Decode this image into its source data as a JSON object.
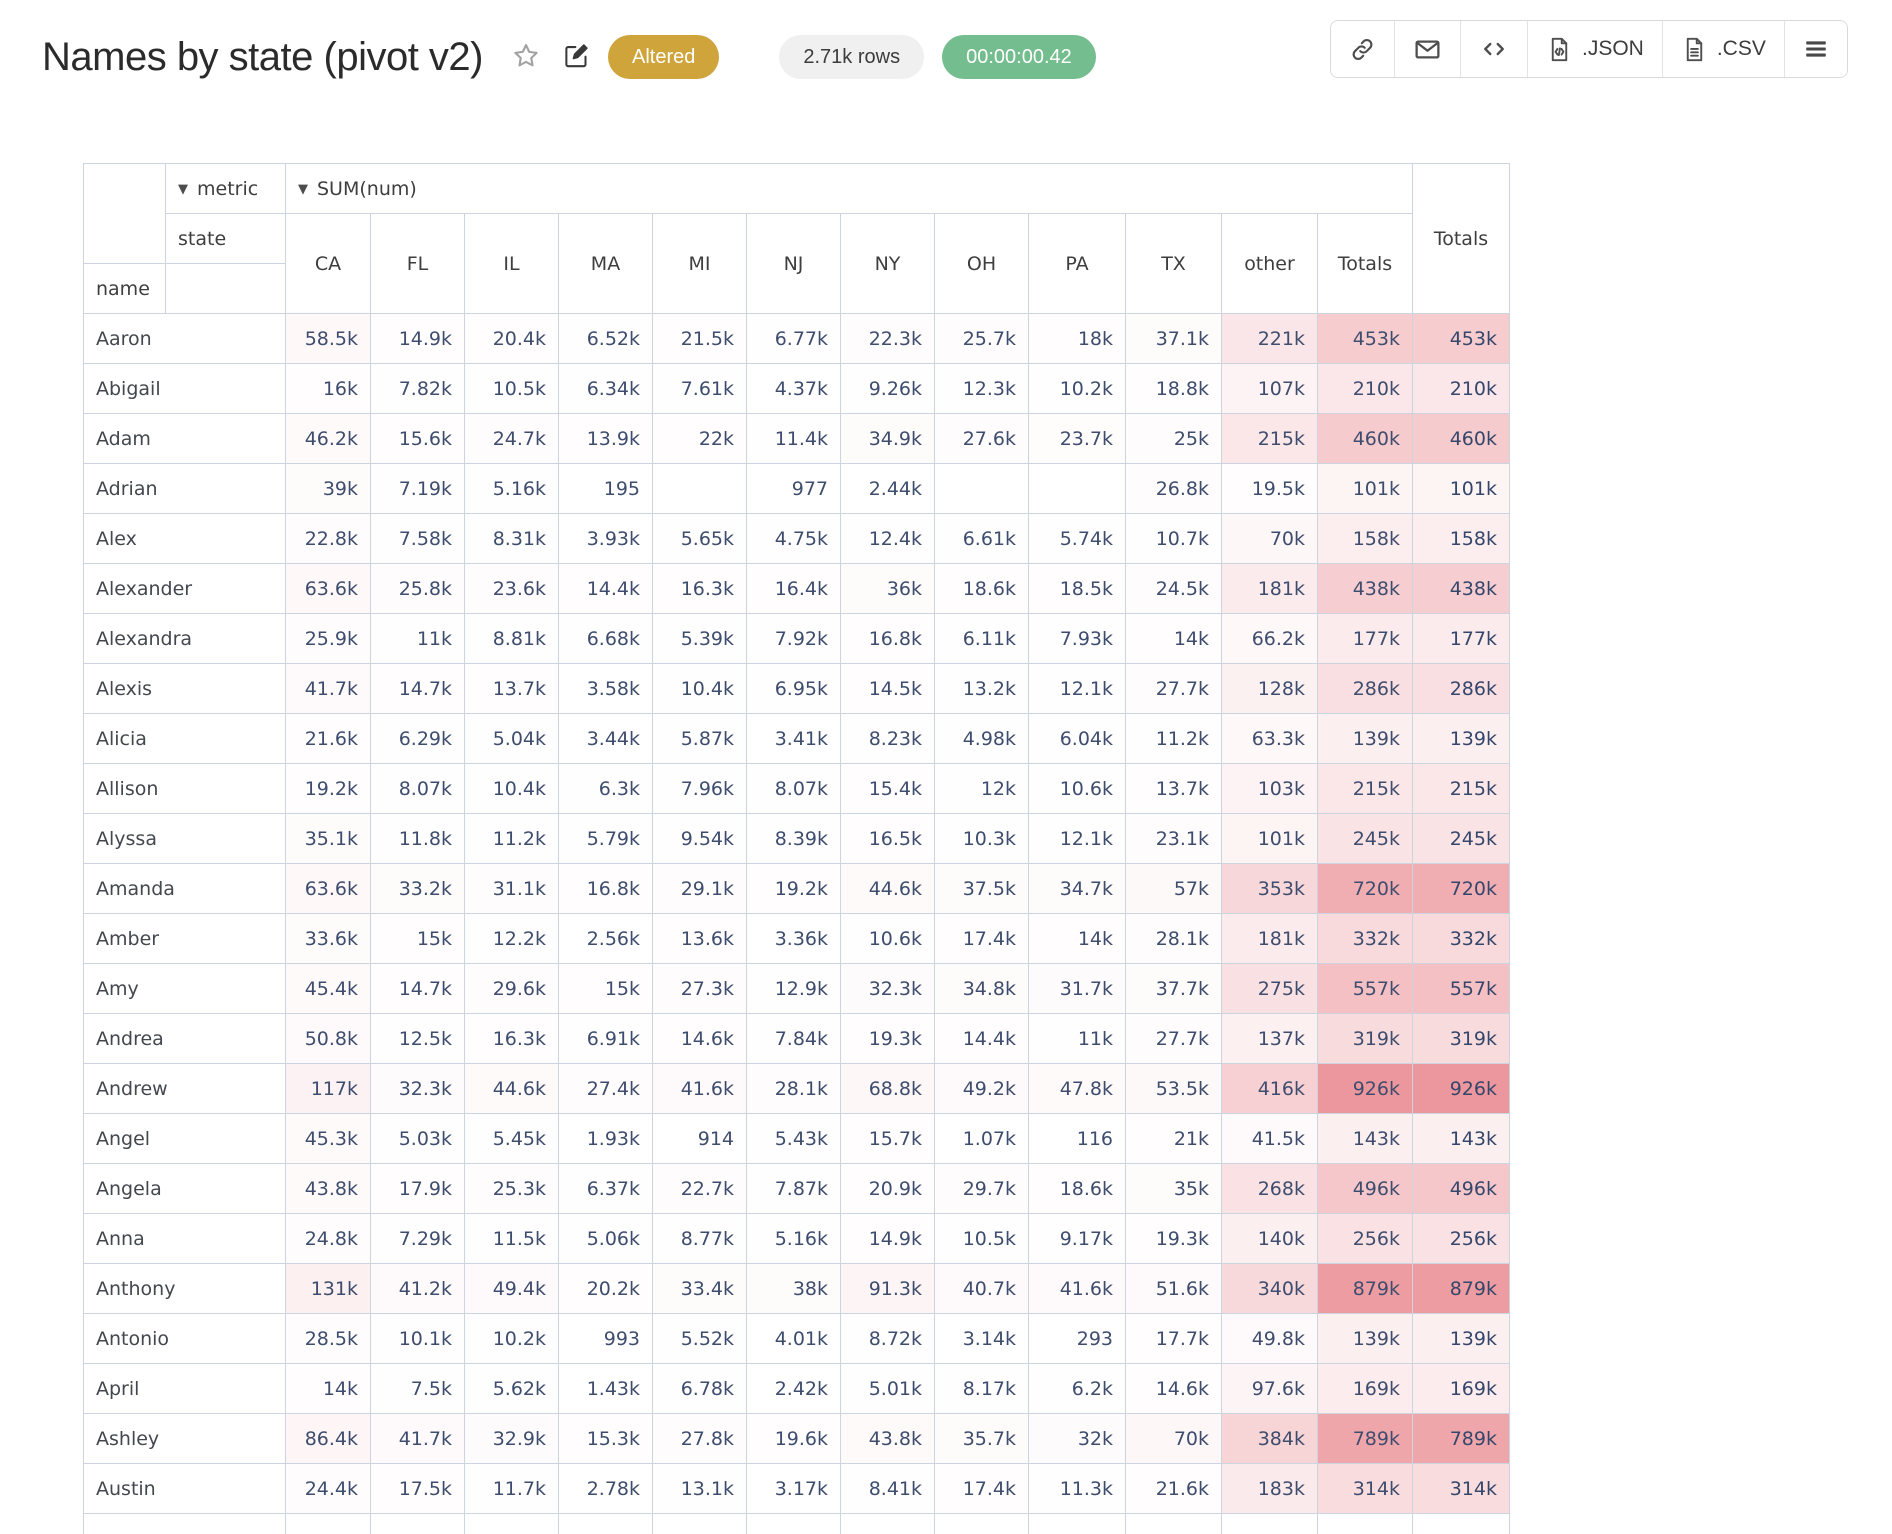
{
  "page": {
    "title": "Names by state (pivot v2)"
  },
  "status": {
    "altered_label": "Altered",
    "rows_label": "2.71k rows",
    "timer_label": "00:00:00.42"
  },
  "toolbar": {
    "json_label": ".JSON",
    "csv_label": ".CSV",
    "icons": [
      "link-icon",
      "mail-icon",
      "code-icon",
      "json-file-icon",
      "csv-file-icon",
      "menu-icon"
    ]
  },
  "colors": {
    "altered_bg": "#cfa43b",
    "rows_pill_bg": "#f0f0f0",
    "timer_bg": "#73bd8e",
    "grid_border": "#ccd4e0",
    "number_text": "#3e4d6e",
    "heat_max": "#ec979d"
  },
  "pivot": {
    "dropdown_glyph": "▼",
    "metric_label": "metric",
    "value_label": "SUM(num)",
    "col_attr": "state",
    "row_attr": "name",
    "columns": [
      "CA",
      "FL",
      "IL",
      "MA",
      "MI",
      "NJ",
      "NY",
      "OH",
      "PA",
      "TX",
      "other",
      "Totals"
    ],
    "grand_total_label": "Totals",
    "rows": [
      {
        "name": "Aaron",
        "cells": [
          "58.5k",
          "14.9k",
          "20.4k",
          "6.52k",
          "21.5k",
          "6.77k",
          "22.3k",
          "25.7k",
          "18k",
          "37.1k",
          "221k",
          "453k"
        ],
        "total": "453k"
      },
      {
        "name": "Abigail",
        "cells": [
          "16k",
          "7.82k",
          "10.5k",
          "6.34k",
          "7.61k",
          "4.37k",
          "9.26k",
          "12.3k",
          "10.2k",
          "18.8k",
          "107k",
          "210k"
        ],
        "total": "210k"
      },
      {
        "name": "Adam",
        "cells": [
          "46.2k",
          "15.6k",
          "24.7k",
          "13.9k",
          "22k",
          "11.4k",
          "34.9k",
          "27.6k",
          "23.7k",
          "25k",
          "215k",
          "460k"
        ],
        "total": "460k"
      },
      {
        "name": "Adrian",
        "cells": [
          "39k",
          "7.19k",
          "5.16k",
          "195",
          "",
          "977",
          "2.44k",
          "",
          "",
          "26.8k",
          "19.5k",
          "101k"
        ],
        "total": "101k"
      },
      {
        "name": "Alex",
        "cells": [
          "22.8k",
          "7.58k",
          "8.31k",
          "3.93k",
          "5.65k",
          "4.75k",
          "12.4k",
          "6.61k",
          "5.74k",
          "10.7k",
          "70k",
          "158k"
        ],
        "total": "158k"
      },
      {
        "name": "Alexander",
        "cells": [
          "63.6k",
          "25.8k",
          "23.6k",
          "14.4k",
          "16.3k",
          "16.4k",
          "36k",
          "18.6k",
          "18.5k",
          "24.5k",
          "181k",
          "438k"
        ],
        "total": "438k"
      },
      {
        "name": "Alexandra",
        "cells": [
          "25.9k",
          "11k",
          "8.81k",
          "6.68k",
          "5.39k",
          "7.92k",
          "16.8k",
          "6.11k",
          "7.93k",
          "14k",
          "66.2k",
          "177k"
        ],
        "total": "177k"
      },
      {
        "name": "Alexis",
        "cells": [
          "41.7k",
          "14.7k",
          "13.7k",
          "3.58k",
          "10.4k",
          "6.95k",
          "14.5k",
          "13.2k",
          "12.1k",
          "27.7k",
          "128k",
          "286k"
        ],
        "total": "286k"
      },
      {
        "name": "Alicia",
        "cells": [
          "21.6k",
          "6.29k",
          "5.04k",
          "3.44k",
          "5.87k",
          "3.41k",
          "8.23k",
          "4.98k",
          "6.04k",
          "11.2k",
          "63.3k",
          "139k"
        ],
        "total": "139k"
      },
      {
        "name": "Allison",
        "cells": [
          "19.2k",
          "8.07k",
          "10.4k",
          "6.3k",
          "7.96k",
          "8.07k",
          "15.4k",
          "12k",
          "10.6k",
          "13.7k",
          "103k",
          "215k"
        ],
        "total": "215k"
      },
      {
        "name": "Alyssa",
        "cells": [
          "35.1k",
          "11.8k",
          "11.2k",
          "5.79k",
          "9.54k",
          "8.39k",
          "16.5k",
          "10.3k",
          "12.1k",
          "23.1k",
          "101k",
          "245k"
        ],
        "total": "245k"
      },
      {
        "name": "Amanda",
        "cells": [
          "63.6k",
          "33.2k",
          "31.1k",
          "16.8k",
          "29.1k",
          "19.2k",
          "44.6k",
          "37.5k",
          "34.7k",
          "57k",
          "353k",
          "720k"
        ],
        "total": "720k"
      },
      {
        "name": "Amber",
        "cells": [
          "33.6k",
          "15k",
          "12.2k",
          "2.56k",
          "13.6k",
          "3.36k",
          "10.6k",
          "17.4k",
          "14k",
          "28.1k",
          "181k",
          "332k"
        ],
        "total": "332k"
      },
      {
        "name": "Amy",
        "cells": [
          "45.4k",
          "14.7k",
          "29.6k",
          "15k",
          "27.3k",
          "12.9k",
          "32.3k",
          "34.8k",
          "31.7k",
          "37.7k",
          "275k",
          "557k"
        ],
        "total": "557k"
      },
      {
        "name": "Andrea",
        "cells": [
          "50.8k",
          "12.5k",
          "16.3k",
          "6.91k",
          "14.6k",
          "7.84k",
          "19.3k",
          "14.4k",
          "11k",
          "27.7k",
          "137k",
          "319k"
        ],
        "total": "319k"
      },
      {
        "name": "Andrew",
        "cells": [
          "117k",
          "32.3k",
          "44.6k",
          "27.4k",
          "41.6k",
          "28.1k",
          "68.8k",
          "49.2k",
          "47.8k",
          "53.5k",
          "416k",
          "926k"
        ],
        "total": "926k"
      },
      {
        "name": "Angel",
        "cells": [
          "45.3k",
          "5.03k",
          "5.45k",
          "1.93k",
          "914",
          "5.43k",
          "15.7k",
          "1.07k",
          "116",
          "21k",
          "41.5k",
          "143k"
        ],
        "total": "143k"
      },
      {
        "name": "Angela",
        "cells": [
          "43.8k",
          "17.9k",
          "25.3k",
          "6.37k",
          "22.7k",
          "7.87k",
          "20.9k",
          "29.7k",
          "18.6k",
          "35k",
          "268k",
          "496k"
        ],
        "total": "496k"
      },
      {
        "name": "Anna",
        "cells": [
          "24.8k",
          "7.29k",
          "11.5k",
          "5.06k",
          "8.77k",
          "5.16k",
          "14.9k",
          "10.5k",
          "9.17k",
          "19.3k",
          "140k",
          "256k"
        ],
        "total": "256k"
      },
      {
        "name": "Anthony",
        "cells": [
          "131k",
          "41.2k",
          "49.4k",
          "20.2k",
          "33.4k",
          "38k",
          "91.3k",
          "40.7k",
          "41.6k",
          "51.6k",
          "340k",
          "879k"
        ],
        "total": "879k"
      },
      {
        "name": "Antonio",
        "cells": [
          "28.5k",
          "10.1k",
          "10.2k",
          "993",
          "5.52k",
          "4.01k",
          "8.72k",
          "3.14k",
          "293",
          "17.7k",
          "49.8k",
          "139k"
        ],
        "total": "139k"
      },
      {
        "name": "April",
        "cells": [
          "14k",
          "7.5k",
          "5.62k",
          "1.43k",
          "6.78k",
          "2.42k",
          "5.01k",
          "8.17k",
          "6.2k",
          "14.6k",
          "97.6k",
          "169k"
        ],
        "total": "169k"
      },
      {
        "name": "Ashley",
        "cells": [
          "86.4k",
          "41.7k",
          "32.9k",
          "15.3k",
          "27.8k",
          "19.6k",
          "43.8k",
          "35.7k",
          "32k",
          "70k",
          "384k",
          "789k"
        ],
        "total": "789k"
      },
      {
        "name": "Austin",
        "cells": [
          "24.4k",
          "17.5k",
          "11.7k",
          "2.78k",
          "13.1k",
          "3.17k",
          "8.41k",
          "17.4k",
          "11.3k",
          "21.6k",
          "183k",
          "314k"
        ],
        "total": "314k"
      }
    ]
  }
}
